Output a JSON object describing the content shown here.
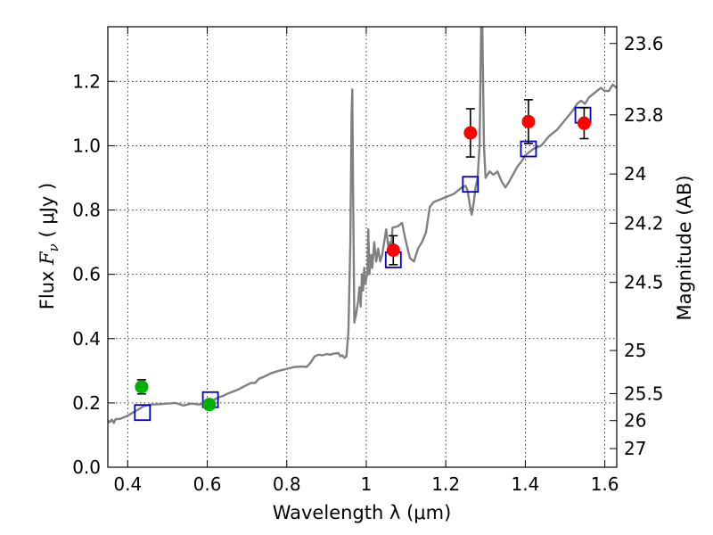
{
  "chart_data": {
    "type": "scatter",
    "title": "",
    "xlabel": "Wavelength  λ (μm)",
    "ylabel_text": "Flux  ",
    "ylabel_symbol": "F",
    "ylabel_sub": "ν",
    "ylabel_units": "  ( μJy )",
    "y2label": "Magnitude (AB)",
    "xlim": [
      0.35,
      1.63
    ],
    "ylim": [
      0.0,
      1.37
    ],
    "grid": true,
    "x_ticks": [
      0.4,
      0.6,
      0.8,
      1.0,
      1.2,
      1.4,
      1.6
    ],
    "x_tick_labels": [
      "0.4",
      "0.6",
      "0.8",
      "1",
      "1.2",
      "1.4",
      "1.6"
    ],
    "y_ticks": [
      0.0,
      0.2,
      0.4,
      0.6,
      0.8,
      1.0,
      1.2
    ],
    "y_tick_labels": [
      "0.0",
      "0.2",
      "0.4",
      "0.6",
      "0.8",
      "1.0",
      "1.2"
    ],
    "y2_ticks": [
      {
        "label": "23.6",
        "flux": 1.318
      },
      {
        "label": "23.8",
        "flux": 1.096
      },
      {
        "label": "24",
        "flux": 0.912
      },
      {
        "label": "24.2",
        "flux": 0.759
      },
      {
        "label": "24.5",
        "flux": 0.575
      },
      {
        "label": "25",
        "flux": 0.363
      },
      {
        "label": "25.5",
        "flux": 0.229
      },
      {
        "label": "26",
        "flux": 0.145
      },
      {
        "label": "27",
        "flux": 0.058
      }
    ],
    "colors": {
      "model": "#808080",
      "observed_red": "#ff0000",
      "observed_green": "#00b000",
      "synthetic": "#0000cc",
      "grid": "#000000"
    },
    "model_spectrum": [
      [
        0.35,
        0.145
      ],
      [
        0.355,
        0.14
      ],
      [
        0.36,
        0.148
      ],
      [
        0.365,
        0.138
      ],
      [
        0.37,
        0.15
      ],
      [
        0.38,
        0.15
      ],
      [
        0.39,
        0.155
      ],
      [
        0.4,
        0.16
      ],
      [
        0.41,
        0.168
      ],
      [
        0.42,
        0.175
      ],
      [
        0.43,
        0.182
      ],
      [
        0.44,
        0.19
      ],
      [
        0.46,
        0.195
      ],
      [
        0.48,
        0.196
      ],
      [
        0.5,
        0.198
      ],
      [
        0.52,
        0.2
      ],
      [
        0.54,
        0.192
      ],
      [
        0.56,
        0.198
      ],
      [
        0.58,
        0.195
      ],
      [
        0.6,
        0.2
      ],
      [
        0.61,
        0.205
      ],
      [
        0.62,
        0.212
      ],
      [
        0.63,
        0.218
      ],
      [
        0.64,
        0.222
      ],
      [
        0.65,
        0.228
      ],
      [
        0.66,
        0.233
      ],
      [
        0.67,
        0.238
      ],
      [
        0.68,
        0.243
      ],
      [
        0.69,
        0.25
      ],
      [
        0.7,
        0.256
      ],
      [
        0.71,
        0.262
      ],
      [
        0.72,
        0.262
      ],
      [
        0.73,
        0.275
      ],
      [
        0.74,
        0.28
      ],
      [
        0.75,
        0.286
      ],
      [
        0.76,
        0.292
      ],
      [
        0.78,
        0.3
      ],
      [
        0.8,
        0.306
      ],
      [
        0.82,
        0.312
      ],
      [
        0.84,
        0.313
      ],
      [
        0.85,
        0.312
      ],
      [
        0.86,
        0.325
      ],
      [
        0.87,
        0.345
      ],
      [
        0.88,
        0.35
      ],
      [
        0.89,
        0.348
      ],
      [
        0.9,
        0.352
      ],
      [
        0.91,
        0.35
      ],
      [
        0.92,
        0.354
      ],
      [
        0.93,
        0.355
      ],
      [
        0.935,
        0.345
      ],
      [
        0.94,
        0.348
      ],
      [
        0.945,
        0.34
      ],
      [
        0.95,
        0.345
      ],
      [
        0.955,
        0.42
      ],
      [
        0.96,
        0.7
      ],
      [
        0.963,
        1.1
      ],
      [
        0.965,
        1.175
      ],
      [
        0.967,
        0.85
      ],
      [
        0.97,
        0.45
      ],
      [
        0.975,
        0.48
      ],
      [
        0.98,
        0.52
      ],
      [
        0.983,
        0.56
      ],
      [
        0.986,
        0.5
      ],
      [
        0.989,
        0.6
      ],
      [
        0.992,
        0.55
      ],
      [
        0.995,
        0.62
      ],
      [
        0.998,
        0.57
      ],
      [
        1.0,
        0.59
      ],
      [
        1.003,
        0.6
      ],
      [
        1.005,
        0.74
      ],
      [
        1.008,
        0.6
      ],
      [
        1.012,
        0.66
      ],
      [
        1.015,
        0.62
      ],
      [
        1.02,
        0.7
      ],
      [
        1.025,
        0.64
      ],
      [
        1.03,
        0.68
      ],
      [
        1.035,
        0.64
      ],
      [
        1.04,
        0.66
      ],
      [
        1.05,
        0.74
      ],
      [
        1.055,
        0.69
      ],
      [
        1.06,
        0.7
      ],
      [
        1.062,
        0.665
      ],
      [
        1.066,
        0.745
      ],
      [
        1.08,
        0.75
      ],
      [
        1.09,
        0.76
      ],
      [
        1.095,
        0.73
      ],
      [
        1.1,
        0.7
      ],
      [
        1.11,
        0.65
      ],
      [
        1.12,
        0.64
      ],
      [
        1.13,
        0.68
      ],
      [
        1.14,
        0.7
      ],
      [
        1.15,
        0.73
      ],
      [
        1.16,
        0.81
      ],
      [
        1.17,
        0.825
      ],
      [
        1.18,
        0.83
      ],
      [
        1.19,
        0.835
      ],
      [
        1.2,
        0.84
      ],
      [
        1.21,
        0.845
      ],
      [
        1.22,
        0.85
      ],
      [
        1.23,
        0.86
      ],
      [
        1.24,
        0.87
      ],
      [
        1.25,
        0.875
      ],
      [
        1.255,
        0.86
      ],
      [
        1.26,
        0.82
      ],
      [
        1.265,
        0.785
      ],
      [
        1.27,
        0.82
      ],
      [
        1.275,
        0.87
      ],
      [
        1.28,
        0.9
      ],
      [
        1.285,
        1.0
      ],
      [
        1.289,
        1.37
      ],
      [
        1.292,
        1.37
      ],
      [
        1.296,
        1.0
      ],
      [
        1.3,
        0.9
      ],
      [
        1.31,
        0.92
      ],
      [
        1.32,
        0.91
      ],
      [
        1.33,
        0.92
      ],
      [
        1.34,
        0.89
      ],
      [
        1.35,
        0.87
      ],
      [
        1.36,
        0.89
      ],
      [
        1.38,
        0.935
      ],
      [
        1.39,
        0.95
      ],
      [
        1.4,
        0.97
      ],
      [
        1.42,
        0.99
      ],
      [
        1.44,
        1.0
      ],
      [
        1.46,
        1.03
      ],
      [
        1.48,
        1.05
      ],
      [
        1.5,
        1.08
      ],
      [
        1.52,
        1.11
      ],
      [
        1.53,
        1.13
      ],
      [
        1.54,
        1.14
      ],
      [
        1.55,
        1.13
      ],
      [
        1.56,
        1.15
      ],
      [
        1.57,
        1.16
      ],
      [
        1.58,
        1.17
      ],
      [
        1.59,
        1.18
      ],
      [
        1.6,
        1.17
      ],
      [
        1.61,
        1.17
      ],
      [
        1.62,
        1.19
      ],
      [
        1.63,
        1.18
      ]
    ],
    "observed": [
      {
        "x": 0.435,
        "y": 0.25,
        "err": 0.022,
        "color": "green"
      },
      {
        "x": 0.605,
        "y": 0.195,
        "err": 0.012,
        "color": "green"
      },
      {
        "x": 1.068,
        "y": 0.675,
        "err": 0.045,
        "color": "red"
      },
      {
        "x": 1.262,
        "y": 1.04,
        "err": 0.075,
        "color": "red"
      },
      {
        "x": 1.408,
        "y": 1.075,
        "err": 0.068,
        "color": "red"
      },
      {
        "x": 1.548,
        "y": 1.07,
        "err": 0.048,
        "color": "red"
      }
    ],
    "synthetic": [
      {
        "x": 0.437,
        "y": 0.17
      },
      {
        "x": 0.608,
        "y": 0.21
      },
      {
        "x": 1.068,
        "y": 0.645
      },
      {
        "x": 1.262,
        "y": 0.88
      },
      {
        "x": 1.408,
        "y": 0.99
      },
      {
        "x": 1.545,
        "y": 1.095
      }
    ]
  }
}
